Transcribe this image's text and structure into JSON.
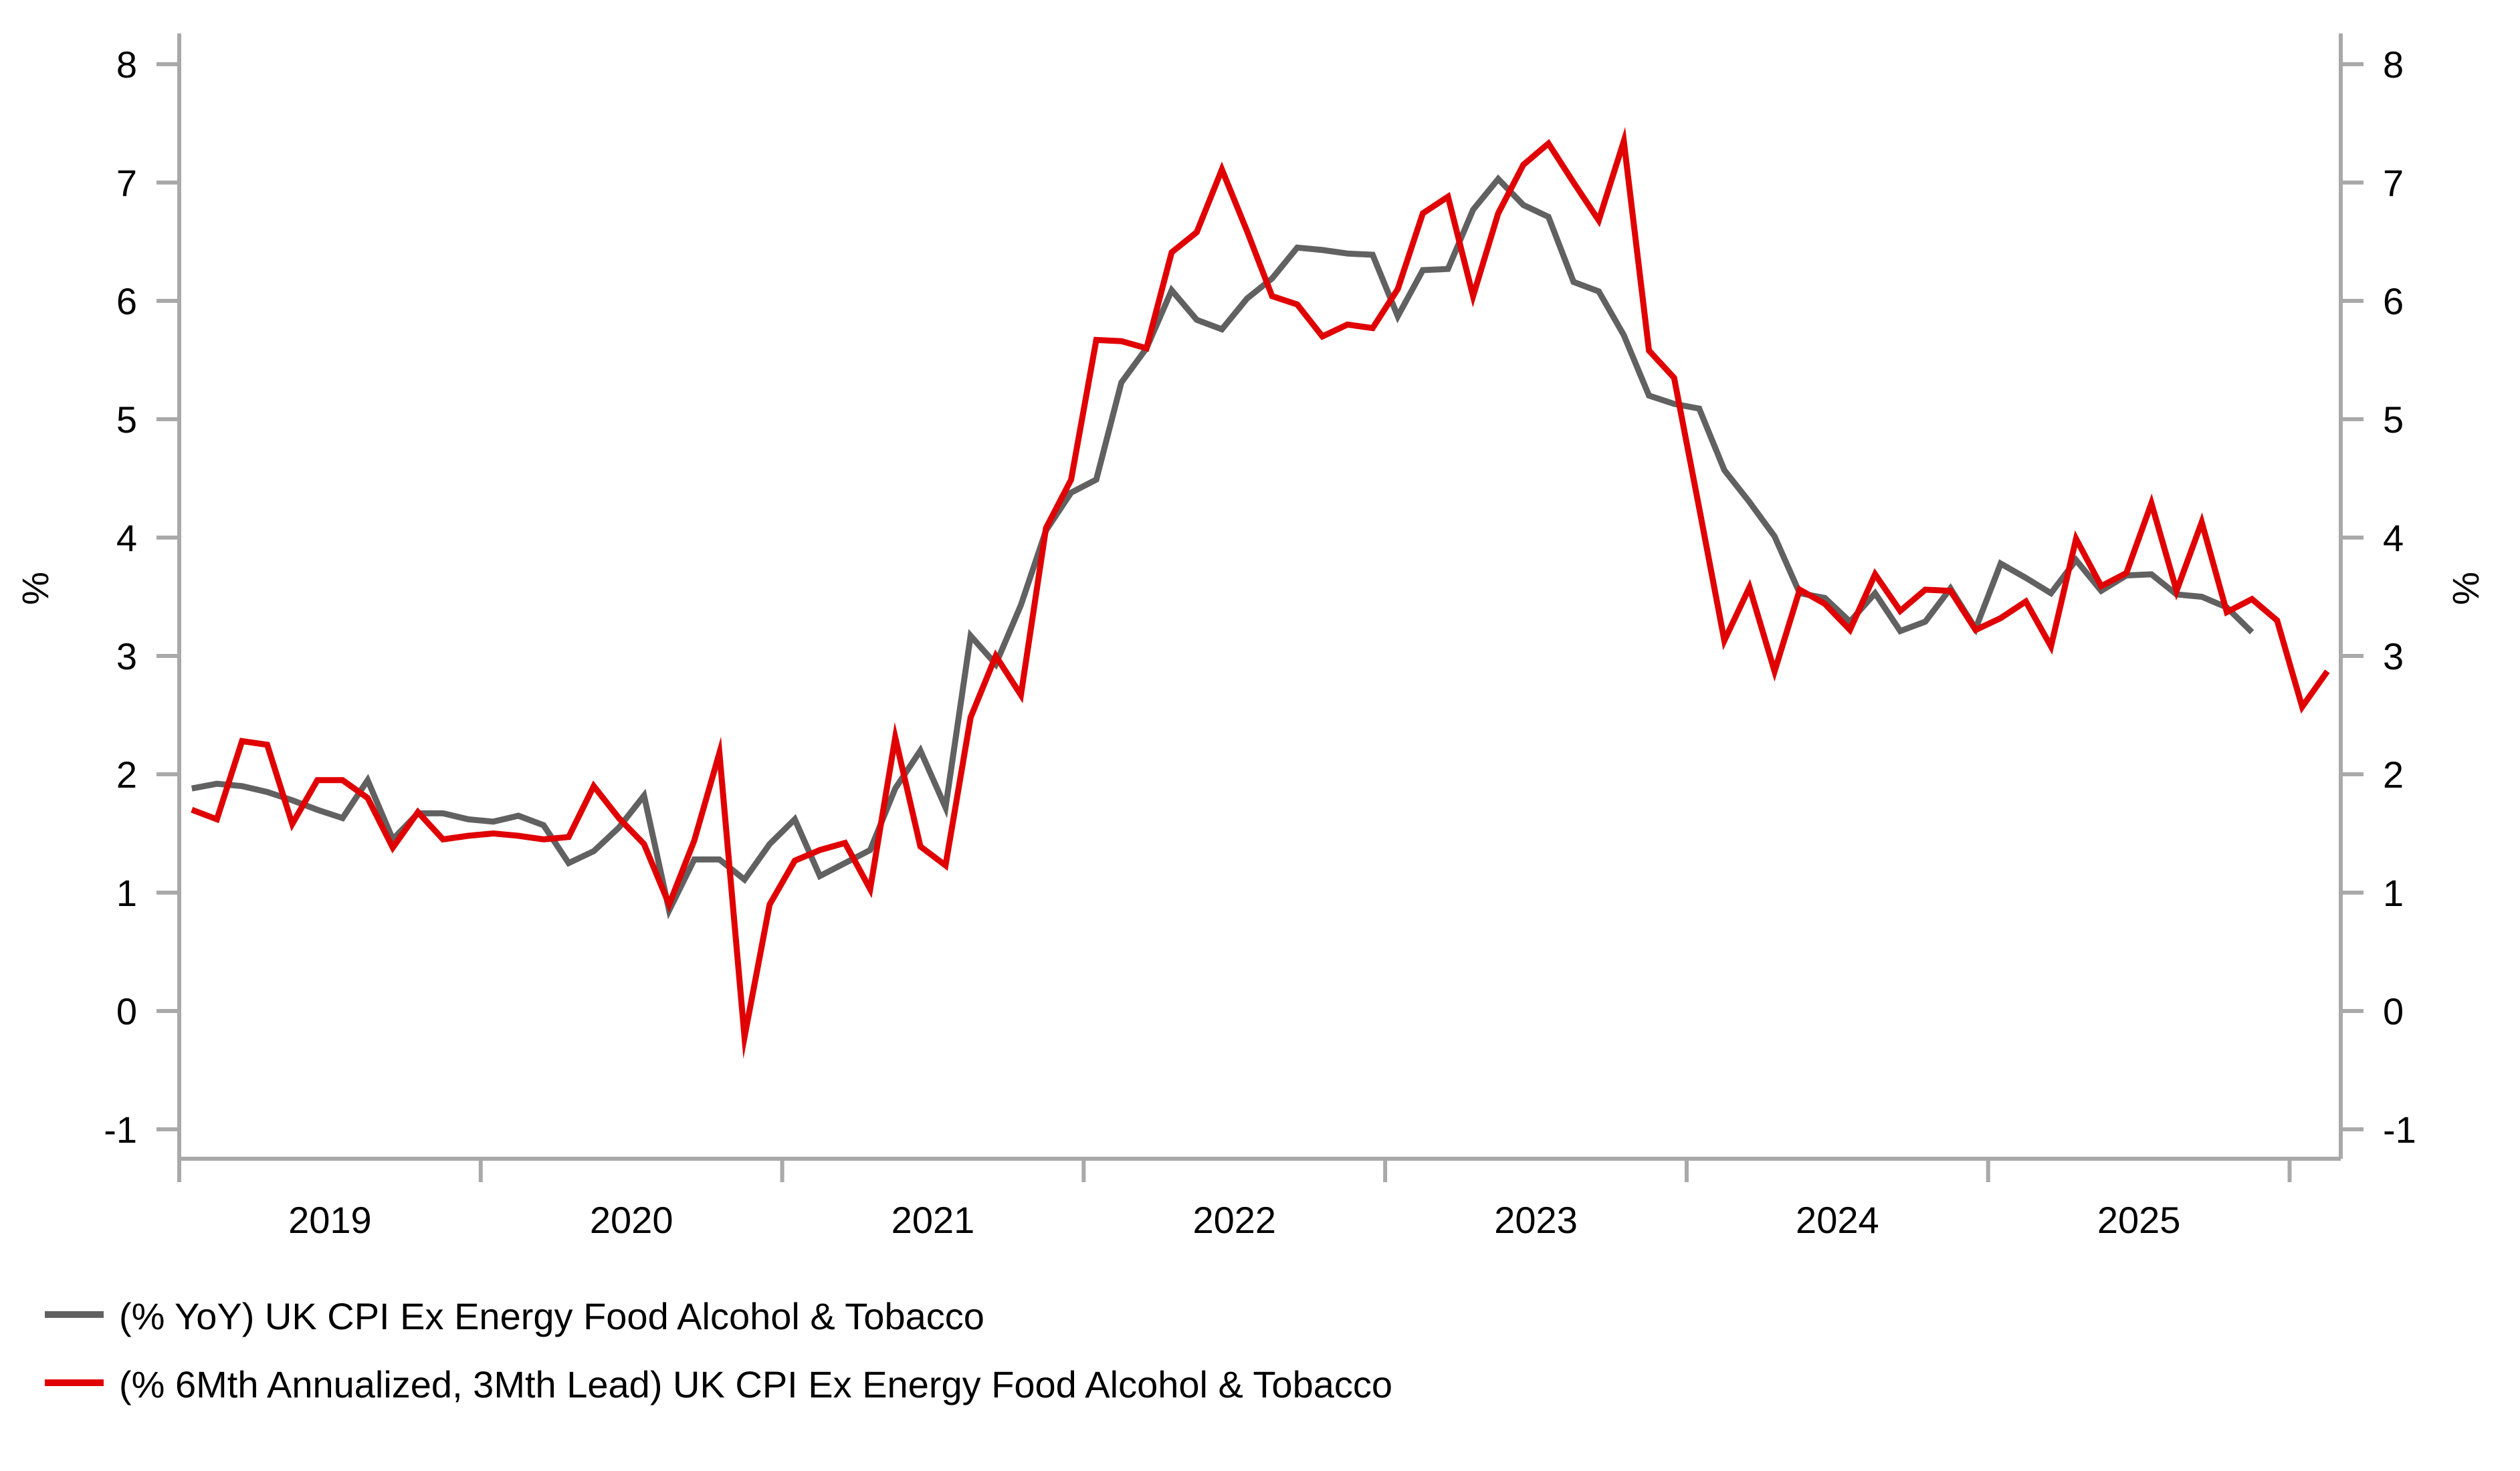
{
  "chart_data": {
    "type": "line",
    "title": "",
    "frequency": "monthly",
    "x_start": "2019-01",
    "x_year_labels": [
      "2019",
      "2020",
      "2021",
      "2022",
      "2023",
      "2024",
      "2025"
    ],
    "ylim": [
      -1,
      8
    ],
    "y_ticks": [
      8,
      7,
      6,
      5,
      4,
      3,
      2,
      1,
      0,
      -1
    ],
    "ylabel_left": "%",
    "ylabel_right": "%",
    "grid": false,
    "legend_position": "bottom-left",
    "axis_color": "#a9a9a9",
    "series": [
      {
        "name": "(% YoY) UK CPI Ex Energy Food Alcohol & Tobacco",
        "color": "#616161",
        "start": "2019-01",
        "values": [
          1.88,
          1.92,
          1.9,
          1.85,
          1.78,
          1.7,
          1.63,
          1.95,
          1.45,
          1.67,
          1.67,
          1.62,
          1.6,
          1.65,
          1.57,
          1.25,
          1.35,
          1.55,
          1.82,
          0.85,
          1.28,
          1.28,
          1.11,
          1.41,
          1.62,
          1.14,
          1.25,
          1.36,
          1.88,
          2.2,
          1.72,
          3.17,
          2.93,
          3.43,
          4.06,
          4.38,
          4.49,
          5.31,
          5.6,
          6.09,
          5.84,
          5.76,
          6.02,
          6.19,
          6.45,
          6.43,
          6.4,
          6.39,
          5.87,
          6.26,
          6.27,
          6.77,
          7.03,
          6.81,
          6.71,
          6.16,
          6.08,
          5.71,
          5.2,
          5.13,
          5.09,
          4.57,
          4.3,
          4.01,
          3.53,
          3.49,
          3.29,
          3.53,
          3.21,
          3.29,
          3.57,
          3.23,
          3.78,
          3.66,
          3.53,
          3.81,
          3.55,
          3.68,
          3.69,
          3.52,
          3.5,
          3.41,
          3.2
        ]
      },
      {
        "name": "(% 6Mth Annualized, 3Mth Lead) UK CPI Ex Energy Food Alcohol & Tobacco",
        "color": "#e00000",
        "start": "2019-01",
        "values": [
          1.7,
          1.62,
          2.28,
          2.25,
          1.58,
          1.95,
          1.95,
          1.8,
          1.38,
          1.68,
          1.45,
          1.48,
          1.5,
          1.48,
          1.45,
          1.47,
          1.9,
          1.63,
          1.41,
          0.9,
          1.44,
          2.18,
          -0.22,
          0.9,
          1.27,
          1.36,
          1.42,
          1.03,
          2.31,
          1.39,
          1.23,
          2.48,
          3.0,
          2.67,
          4.08,
          4.49,
          5.67,
          5.66,
          5.6,
          6.41,
          6.58,
          7.11,
          6.59,
          6.04,
          5.97,
          5.7,
          5.8,
          5.77,
          6.1,
          6.74,
          6.88,
          6.04,
          6.74,
          7.15,
          7.33,
          7.0,
          6.68,
          7.35,
          5.58,
          5.35,
          4.25,
          3.13,
          3.58,
          2.87,
          3.56,
          3.44,
          3.22,
          3.69,
          3.38,
          3.56,
          3.55,
          3.22,
          3.32,
          3.46,
          3.08,
          3.99,
          3.59,
          3.7,
          4.29,
          3.55,
          4.13,
          3.37,
          3.48,
          3.3,
          2.57,
          2.87
        ]
      }
    ]
  }
}
